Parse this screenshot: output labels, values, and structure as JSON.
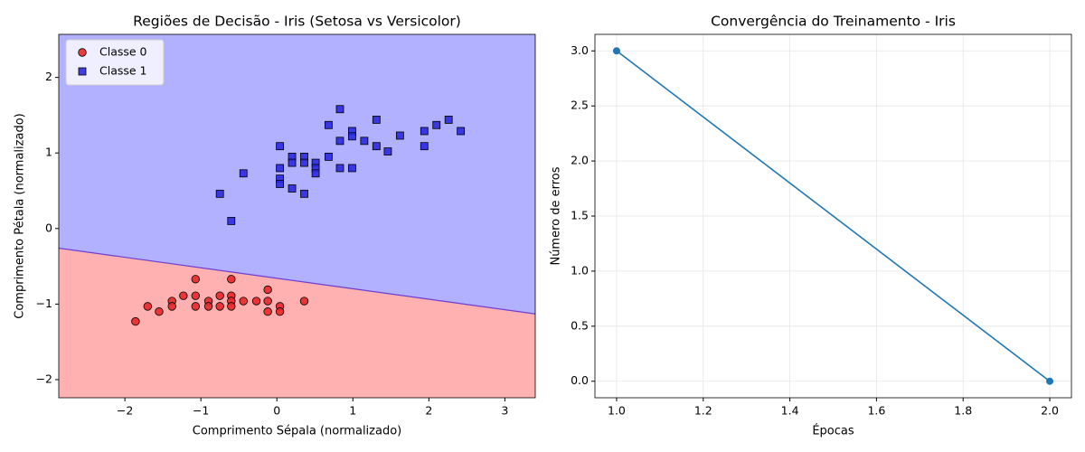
{
  "chart_data": [
    {
      "type": "scatter",
      "title": "Regiões de Decisão - Iris (Setosa vs Versicolor)",
      "x_label": "Comprimento Sépala (normalizado)",
      "y_label": "Comprimento Pétala (normalizado)",
      "xlim": [
        -2.87,
        3.4
      ],
      "ylim": [
        -2.24,
        2.57
      ],
      "xticks": [
        {
          "value": -2,
          "label": "−2"
        },
        {
          "value": -1,
          "label": "−1"
        },
        0,
        1,
        2,
        3
      ],
      "yticks": [
        {
          "value": -2,
          "label": "−2"
        },
        {
          "value": -1,
          "label": "−1"
        },
        0,
        1,
        2
      ],
      "grid": false,
      "legend": "upper left",
      "regions": {
        "below": "#ffb1b1",
        "above": "#b1b1ff",
        "boundary_color": "#6b3dd6"
      },
      "boundary": {
        "x": [
          -2.87,
          3.4
        ],
        "y": [
          -0.26,
          -1.13
        ]
      },
      "series": [
        {
          "name": "Classe 0",
          "color": "#e8282a",
          "marker": "circle",
          "x": [
            -1.86,
            -1.7,
            -1.55,
            -1.38,
            -1.38,
            -1.23,
            -1.07,
            -1.07,
            -1.07,
            -0.9,
            -0.9,
            -0.75,
            -0.75,
            -0.6,
            -0.6,
            -0.6,
            -0.6,
            -0.44,
            -0.27,
            -0.12,
            -0.12,
            -0.12,
            0.04,
            0.04,
            0.36
          ],
          "values": [
            -1.23,
            -1.03,
            -1.1,
            -0.96,
            -1.03,
            -0.89,
            -0.67,
            -0.89,
            -1.03,
            -0.96,
            -1.03,
            -0.89,
            -1.03,
            -0.67,
            -0.89,
            -0.96,
            -1.03,
            -0.96,
            -0.96,
            -0.81,
            -0.96,
            -1.1,
            -1.03,
            -1.1,
            -0.96
          ]
        },
        {
          "name": "Classe 1",
          "color": "#2a2ae0",
          "marker": "square",
          "x": [
            -0.75,
            -0.6,
            -0.44,
            0.04,
            0.04,
            0.04,
            0.04,
            0.2,
            0.2,
            0.2,
            0.36,
            0.36,
            0.36,
            0.51,
            0.51,
            0.51,
            0.68,
            0.68,
            0.83,
            0.83,
            0.83,
            0.99,
            0.99,
            0.99,
            1.15,
            1.31,
            1.31,
            1.46,
            1.62,
            1.94,
            1.94,
            2.1,
            2.26,
            2.42
          ],
          "values": [
            0.46,
            0.1,
            0.73,
            1.09,
            0.8,
            0.66,
            0.59,
            0.95,
            0.87,
            0.53,
            0.95,
            0.87,
            0.46,
            0.87,
            0.8,
            0.73,
            1.37,
            0.95,
            1.58,
            1.16,
            0.8,
            1.29,
            1.22,
            0.8,
            1.16,
            1.44,
            1.09,
            1.02,
            1.23,
            1.29,
            1.09,
            1.37,
            1.44,
            1.29
          ]
        }
      ]
    },
    {
      "type": "line",
      "title": "Convergência do Treinamento - Iris",
      "x_label": "Épocas",
      "y_label": "Número de erros",
      "xlim": [
        0.95,
        2.05
      ],
      "ylim": [
        -0.15,
        3.15
      ],
      "xticks": [
        {
          "value": 1,
          "label": "1.0"
        },
        {
          "value": 1.2,
          "label": "1.2"
        },
        {
          "value": 1.4,
          "label": "1.4"
        },
        {
          "value": 1.6,
          "label": "1.6"
        },
        {
          "value": 1.8,
          "label": "1.8"
        },
        {
          "value": 2,
          "label": "2.0"
        }
      ],
      "yticks": [
        {
          "value": 0,
          "label": "0.0"
        },
        {
          "value": 0.5,
          "label": "0.5"
        },
        {
          "value": 1,
          "label": "1.0"
        },
        {
          "value": 1.5,
          "label": "1.5"
        },
        {
          "value": 2,
          "label": "2.0"
        },
        {
          "value": 2.5,
          "label": "2.5"
        },
        {
          "value": 3,
          "label": "3.0"
        }
      ],
      "grid": true,
      "series": [
        {
          "color": "#1f77b4",
          "x": [
            1,
            2
          ],
          "values": [
            3,
            0
          ]
        }
      ]
    }
  ]
}
